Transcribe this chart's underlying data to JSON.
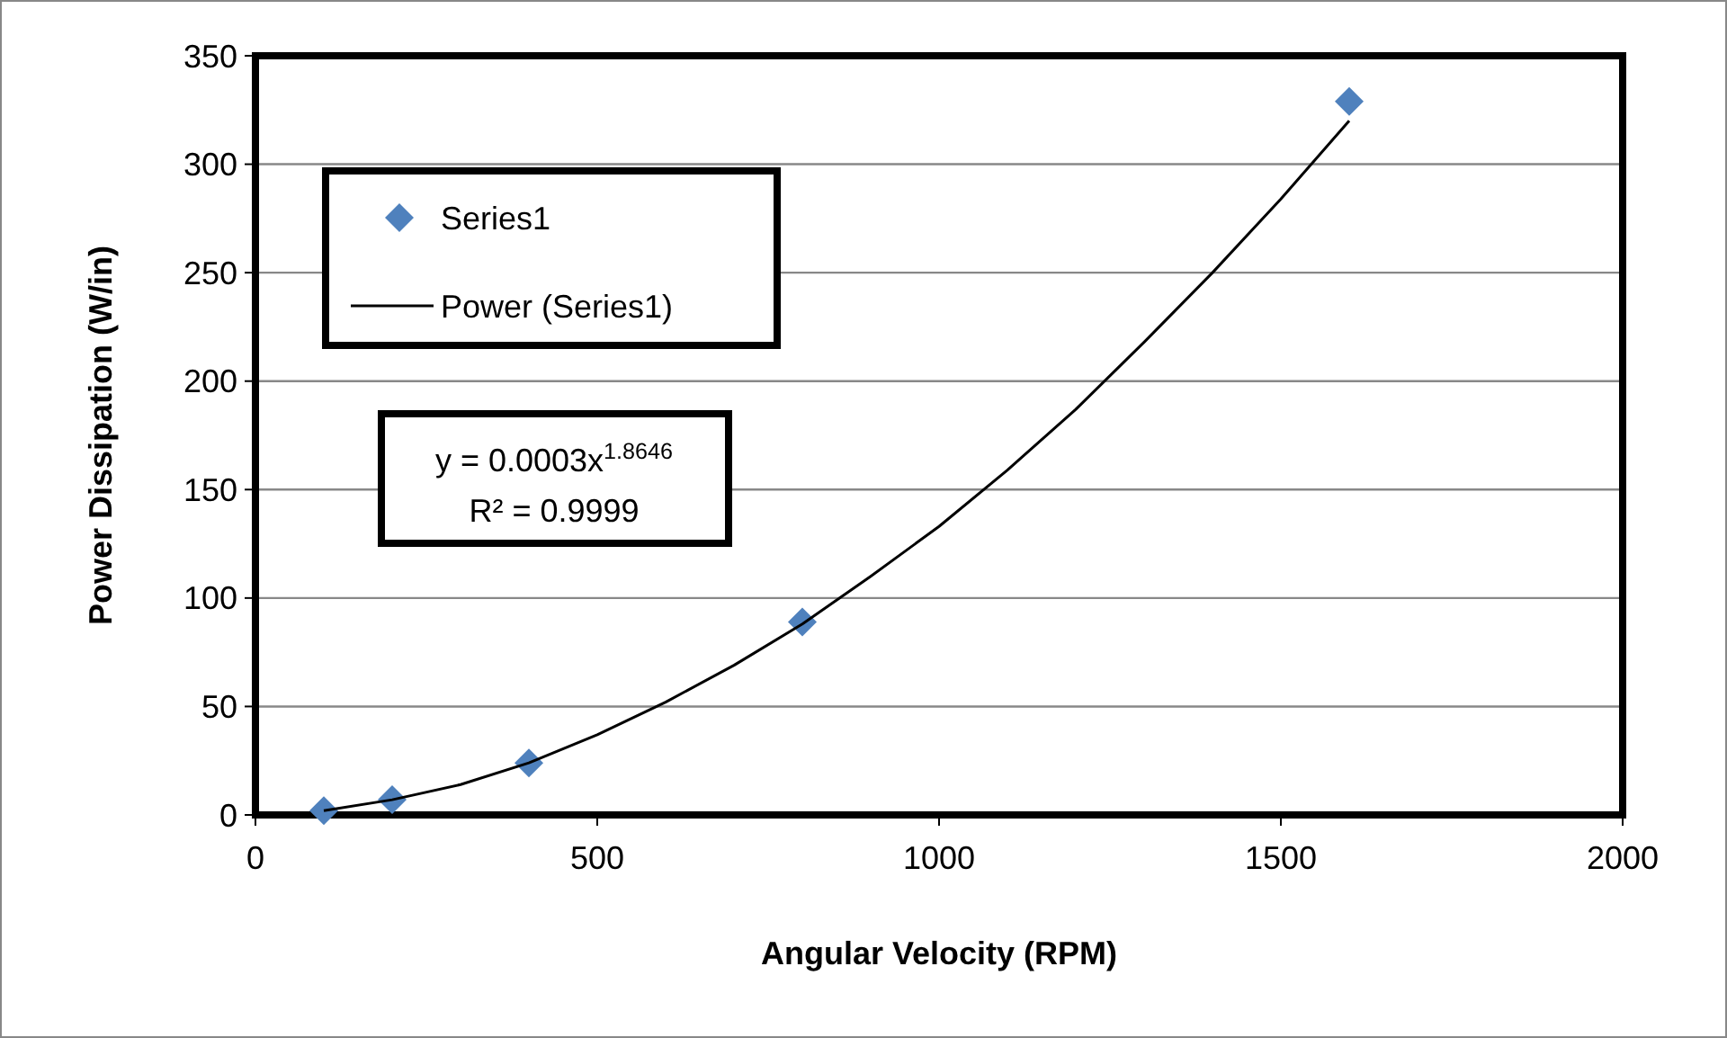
{
  "chart_data": {
    "type": "scatter",
    "xlabel": "Angular Velocity (RPM)",
    "ylabel": "Power Dissipation (W/in)",
    "xlim": [
      0,
      2000
    ],
    "xticks": [
      0,
      500,
      1000,
      1500,
      2000
    ],
    "ylim": [
      0,
      350
    ],
    "yticks": [
      0,
      50,
      100,
      150,
      200,
      250,
      300,
      350
    ],
    "grid": "y",
    "legend": "top left",
    "marker": "diamond",
    "series": [
      {
        "name": "Series1",
        "color": "#4f81bd",
        "x": [
          100,
          200,
          400,
          800,
          1600
        ],
        "values": [
          2,
          7,
          24,
          89,
          329
        ]
      },
      {
        "name": "Power (Series1)",
        "type": "line",
        "color": "#000000",
        "marker": "none",
        "line_style": "solid",
        "x": [
          100,
          200,
          300,
          400,
          500,
          600,
          700,
          800,
          900,
          1000,
          1100,
          1200,
          1300,
          1400,
          1500,
          1600
        ],
        "values": [
          2,
          7,
          14,
          24,
          37,
          52,
          69,
          88,
          110,
          133,
          159,
          187,
          218,
          250,
          284,
          320
        ]
      }
    ],
    "annotations": [
      "y = 0.0003x$^{1.8646}$",
      "R² = 0.9999"
    ]
  }
}
